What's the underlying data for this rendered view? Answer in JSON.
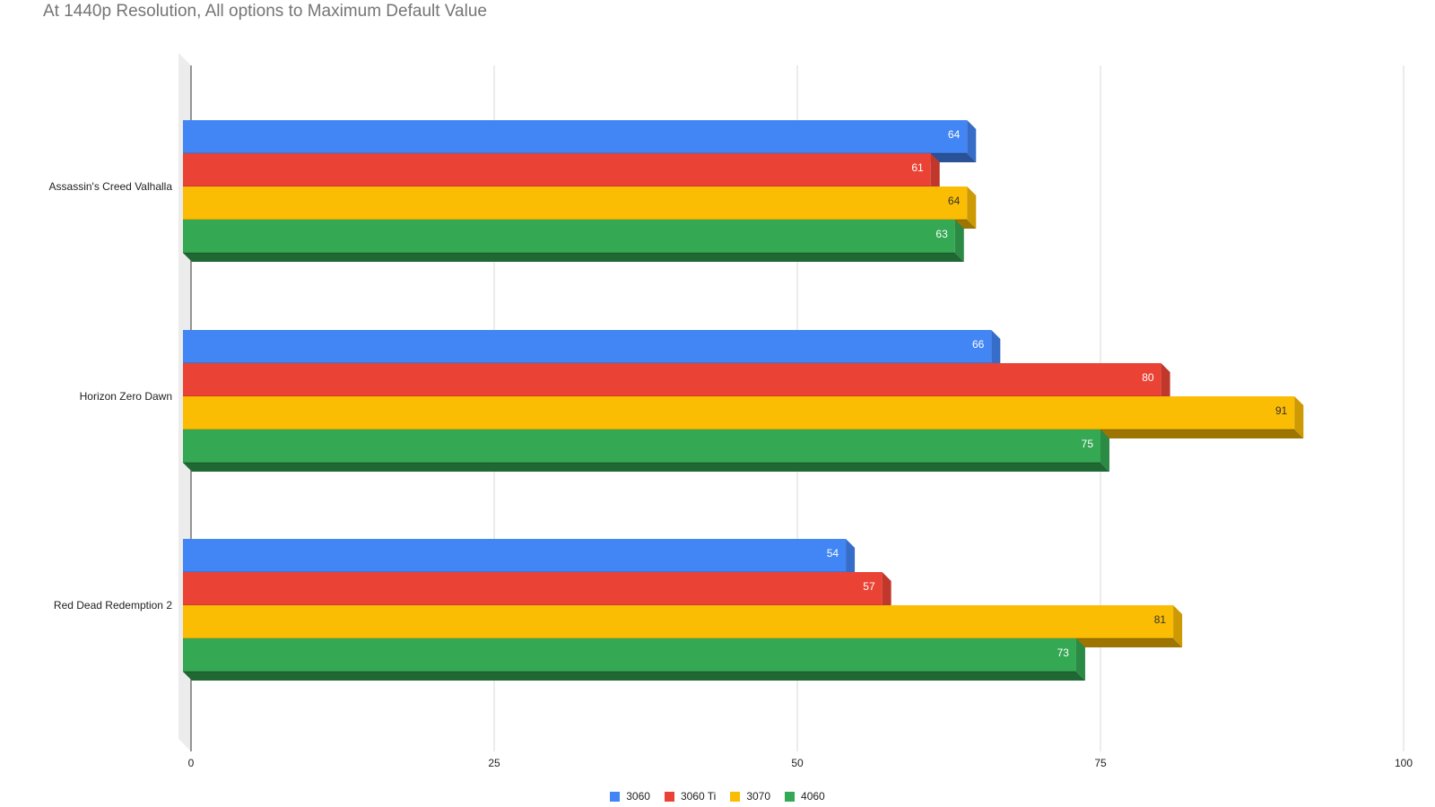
{
  "chart_data": {
    "type": "bar",
    "orientation": "horizontal",
    "style": "3d",
    "title": "At 1440p Resolution, All options to Maximum Default Value",
    "categories": [
      "Assassin's Creed Valhalla",
      "Horizon Zero Dawn",
      "Red Dead Redemption 2"
    ],
    "series": [
      {
        "name": "3060",
        "color": "#4285f4",
        "values": [
          64,
          66,
          54
        ]
      },
      {
        "name": "3060 Ti",
        "color": "#ea4335",
        "values": [
          61,
          80,
          57
        ]
      },
      {
        "name": "3070",
        "color": "#fbbc04",
        "values": [
          64,
          91,
          81
        ]
      },
      {
        "name": "4060",
        "color": "#34a853",
        "values": [
          63,
          75,
          73
        ]
      }
    ],
    "xlim": [
      0,
      100
    ],
    "xticks": [
      0,
      25,
      50,
      75,
      100
    ],
    "grid": true,
    "legend": "bottom"
  }
}
